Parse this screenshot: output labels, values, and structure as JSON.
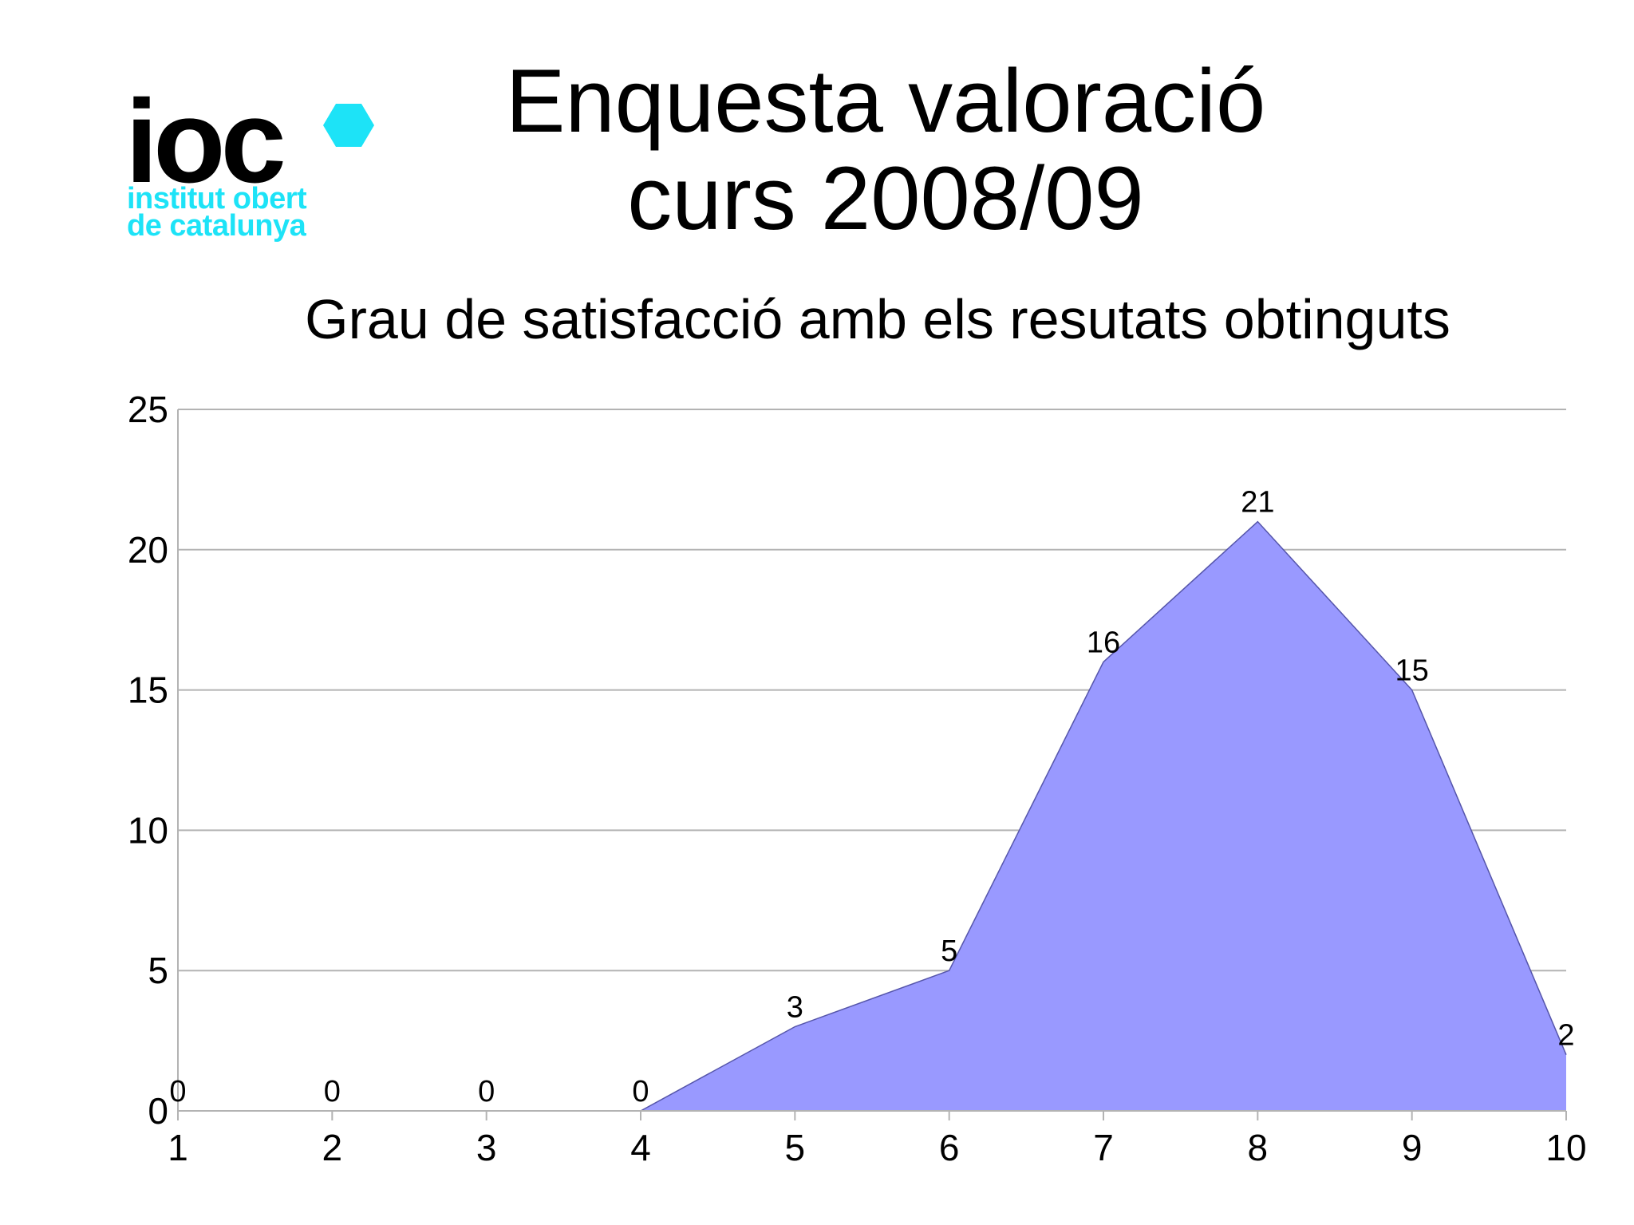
{
  "logo": {
    "word": "ioc",
    "line1": "institut obert",
    "line2": "de catalunya",
    "word_color": "#000000",
    "accent_color": "#1de3f7"
  },
  "slide": {
    "title_line1": "Enquesta valoració",
    "title_line2": "curs 2008/09",
    "subtitle": "Grau de satisfacció amb els resutats obtinguts"
  },
  "chart_data": {
    "type": "area",
    "title": "Grau de satisfacció amb els resutats obtinguts",
    "xlabel": "",
    "ylabel": "",
    "x": [
      "1",
      "2",
      "3",
      "4",
      "5",
      "6",
      "7",
      "8",
      "9",
      "10"
    ],
    "values": [
      0,
      0,
      0,
      0,
      3,
      5,
      16,
      21,
      15,
      2
    ],
    "data_labels": [
      "0",
      "0",
      "0",
      "0",
      "3",
      "5",
      "16",
      "21",
      "15",
      "2"
    ],
    "yticks": [
      "0",
      "5",
      "10",
      "15",
      "20",
      "25"
    ],
    "ylim": [
      0,
      25
    ],
    "grid": true,
    "legend": "none",
    "fill_color": "#9999ff",
    "line_color": "#5555aa",
    "grid_color": "#b3b3b3"
  }
}
